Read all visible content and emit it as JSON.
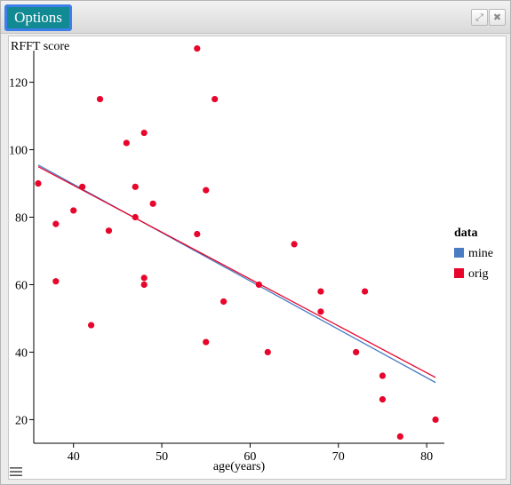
{
  "toolbar": {
    "options_label": "Options",
    "expand_icon": "expand-icon",
    "close_icon": "close-icon",
    "menu_icon": "hamburger-menu-icon"
  },
  "chart_data": {
    "type": "scatter",
    "title": "",
    "ylabel": "RFFT score",
    "xlabel": "age(years)",
    "xlim": [
      35.5,
      82
    ],
    "ylim": [
      13,
      132
    ],
    "x_ticks": [
      40,
      50,
      60,
      70,
      80
    ],
    "y_ticks": [
      20,
      40,
      60,
      80,
      100,
      120
    ],
    "grid": false,
    "legend": {
      "title": "data",
      "position": "right",
      "entries": [
        {
          "name": "mine",
          "color": "#4a7cc4"
        },
        {
          "name": "orig",
          "color": "#e8052b"
        }
      ]
    },
    "points": {
      "series": "orig",
      "color": "#e8052b",
      "x": [
        36,
        38,
        38,
        40,
        41,
        42,
        43,
        44,
        46,
        47,
        47,
        48,
        48,
        48,
        49,
        54,
        54,
        55,
        55,
        56,
        57,
        61,
        62,
        65,
        68,
        68,
        72,
        73,
        75,
        75,
        77,
        81
      ],
      "y": [
        90,
        78,
        61,
        82,
        89,
        48,
        115,
        76,
        102,
        89,
        80,
        105,
        62,
        60,
        84,
        130,
        75,
        88,
        43,
        115,
        55,
        60,
        40,
        72,
        58,
        52,
        40,
        58,
        33,
        26,
        15,
        20
      ]
    },
    "fit_lines": [
      {
        "series": "mine",
        "color": "#4a7cc4",
        "x": [
          36,
          81
        ],
        "y": [
          95.5,
          31
        ]
      },
      {
        "series": "orig",
        "color": "#e8052b",
        "x": [
          36,
          81
        ],
        "y": [
          95.0,
          32.5
        ]
      }
    ]
  }
}
